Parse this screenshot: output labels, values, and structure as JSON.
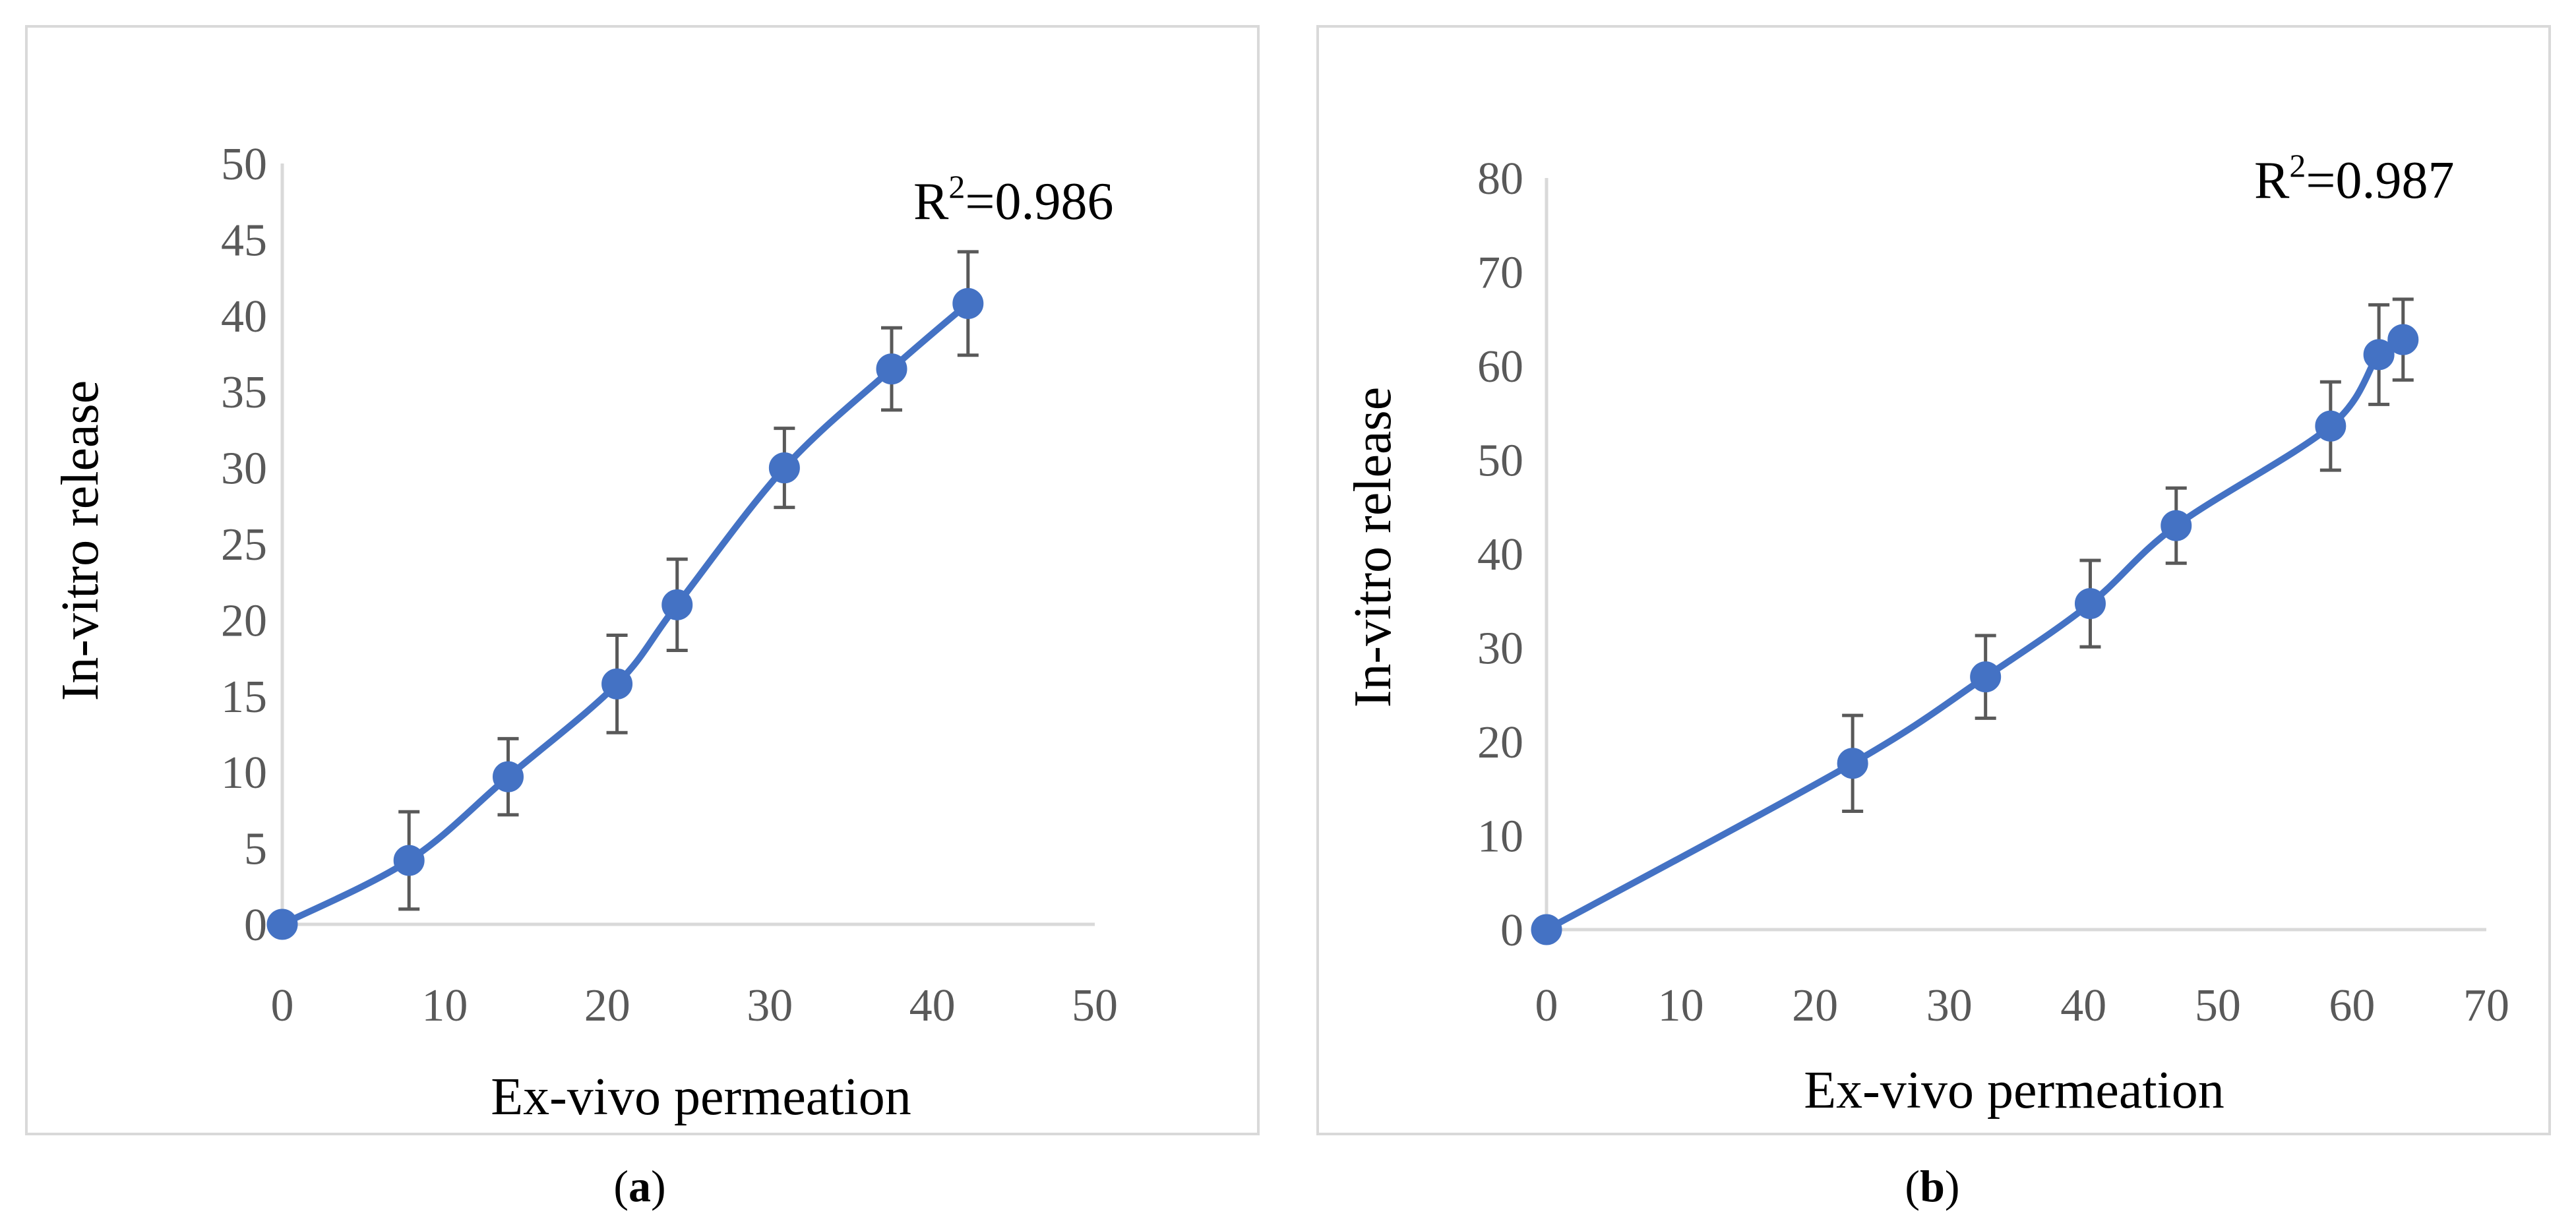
{
  "colors": {
    "series": "#4472C4",
    "axis": "#D9D9D9",
    "tick_text": "#595959",
    "error_bar": "#595959",
    "frame": "#D9D9D9"
  },
  "chart_data": [
    {
      "type": "scatter",
      "panel_label": "a",
      "xlabel": "Ex-vivo permeation",
      "ylabel": "In-vitro release",
      "xlim": [
        0,
        50
      ],
      "ylim": [
        0,
        50
      ],
      "xticks": [
        0,
        10,
        20,
        30,
        40,
        50
      ],
      "yticks": [
        0,
        5,
        10,
        15,
        20,
        25,
        30,
        35,
        40,
        45,
        50
      ],
      "grid": false,
      "r2_base": "R",
      "r2_sup": "2",
      "r2_value": "=0.986",
      "series": [
        {
          "name": "In-vitro release",
          "smooth": true,
          "x": [
            0,
            7.8,
            13.9,
            20.6,
            24.3,
            30.9,
            37.5,
            42.2
          ],
          "y": [
            0,
            4.2,
            9.7,
            15.8,
            21.0,
            30.0,
            36.5,
            40.8
          ],
          "error": [
            0,
            3.2,
            2.5,
            3.2,
            3.0,
            2.6,
            2.7,
            3.4
          ]
        }
      ]
    },
    {
      "type": "scatter",
      "panel_label": "b",
      "xlabel": "Ex-vivo permeation",
      "ylabel": "In-vitro release",
      "xlim": [
        0,
        70
      ],
      "ylim": [
        0,
        80
      ],
      "xticks": [
        0,
        10,
        20,
        30,
        40,
        50,
        60,
        70
      ],
      "yticks": [
        0,
        10,
        20,
        30,
        40,
        50,
        60,
        70,
        80
      ],
      "grid": false,
      "r2_base": "R",
      "r2_sup": "2",
      "r2_value": "=0.987",
      "series": [
        {
          "name": "In-vitro release",
          "smooth": true,
          "x": [
            0,
            22.8,
            32.7,
            40.5,
            46.9,
            58.4,
            62.0,
            63.8
          ],
          "y": [
            0,
            17.7,
            26.9,
            34.7,
            43.0,
            53.6,
            61.2,
            62.8
          ],
          "error": [
            0,
            5.1,
            4.4,
            4.6,
            4.0,
            4.7,
            5.3,
            4.3
          ]
        }
      ]
    }
  ]
}
